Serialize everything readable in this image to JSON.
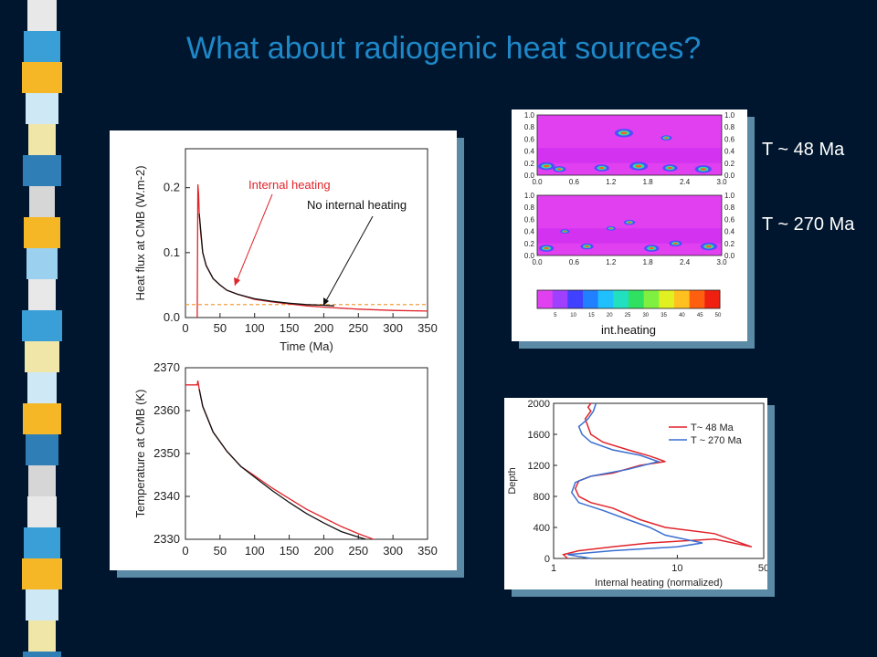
{
  "title": "What about radiogenic heat sources?",
  "side_labels": {
    "t1": "T ~ 48 Ma",
    "t2": "T ~ 270 Ma"
  },
  "colors": {
    "background": "#00162e",
    "title": "#1e88c8",
    "red": "#e0242a",
    "blue": "#3a6fd0",
    "orange": "#f0a040"
  },
  "chart_data": [
    {
      "type": "line",
      "ylabel": "Heat flux at CMB (W.m-2)",
      "xlabel": "Time (Ma)",
      "xlim": [
        0,
        350
      ],
      "ylim": [
        0,
        0.26
      ],
      "xticks": [
        "0",
        "50",
        "100",
        "150",
        "200",
        "250",
        "300",
        "350"
      ],
      "yticks": [
        "0.0",
        "0.1",
        "0.2"
      ],
      "hline": 0.02,
      "annotations": [
        "Internal heating",
        "No internal heating"
      ],
      "series": [
        {
          "color": "#e0242a",
          "x": [
            17,
            18,
            19,
            20,
            22,
            25,
            30,
            40,
            50,
            60,
            75,
            100,
            125,
            150,
            175,
            200,
            250,
            300,
            350
          ],
          "y": [
            0.0,
            0.205,
            0.19,
            0.16,
            0.13,
            0.1,
            0.08,
            0.06,
            0.05,
            0.042,
            0.036,
            0.028,
            0.024,
            0.021,
            0.018,
            0.016,
            0.013,
            0.011,
            0.01
          ]
        },
        {
          "color": "#111111",
          "x": [
            20,
            25,
            30,
            40,
            50,
            60,
            75,
            100,
            125,
            150,
            175,
            200,
            215
          ],
          "y": [
            0.16,
            0.1,
            0.08,
            0.06,
            0.05,
            0.042,
            0.036,
            0.029,
            0.025,
            0.022,
            0.02,
            0.019,
            0.018
          ]
        }
      ]
    },
    {
      "type": "line",
      "ylabel": "Temperature at CMB (K)",
      "xlabel": "",
      "xlim": [
        0,
        350
      ],
      "ylim": [
        2330,
        2370
      ],
      "xticks": [
        "0",
        "50",
        "100",
        "150",
        "200",
        "250",
        "300",
        "350"
      ],
      "yticks": [
        "2330",
        "2340",
        "2350",
        "2360",
        "2370"
      ],
      "series": [
        {
          "color": "#e0242a",
          "x": [
            0,
            15,
            17,
            18,
            20,
            25,
            40,
            60,
            80,
            100,
            125,
            150,
            175,
            200,
            225,
            250,
            275
          ],
          "y": [
            2366,
            2366,
            2366,
            2367,
            2365,
            2361,
            2355,
            2350.5,
            2347,
            2344.8,
            2342,
            2339.5,
            2337,
            2335,
            2333,
            2331.3,
            2329.8
          ]
        },
        {
          "color": "#111111",
          "x": [
            20,
            25,
            40,
            60,
            80,
            100,
            125,
            150,
            175,
            200,
            225,
            250,
            265
          ],
          "y": [
            2365,
            2361,
            2355,
            2350.5,
            2347,
            2344.5,
            2341.4,
            2338.6,
            2336,
            2333.8,
            2331.8,
            2330.5,
            2329.8
          ]
        }
      ]
    },
    {
      "type": "heatmap",
      "xlabel": "",
      "ylabel": "",
      "xticks": [
        "0.0",
        "0.6",
        "1.2",
        "1.8",
        "2.4",
        "3.0"
      ],
      "yticks": [
        "0.0",
        "0.2",
        "0.4",
        "0.6",
        "0.8",
        "1.0"
      ],
      "colorbar_label": "int.heating",
      "colorbar_ticks": [
        "5",
        "10",
        "15",
        "20",
        "25",
        "30",
        "35",
        "40",
        "45",
        "50"
      ]
    },
    {
      "type": "line",
      "xlabel": "Internal heating (normalized)",
      "ylabel": "Depth",
      "xscale": "log",
      "xlim": [
        1,
        50
      ],
      "ylim": [
        0,
        2000
      ],
      "xticks": [
        "1",
        "10",
        "50"
      ],
      "yticks": [
        "0",
        "400",
        "800",
        "1200",
        "1600",
        "2000"
      ],
      "legend": "top-right",
      "series": [
        {
          "name": "T~ 48 Ma",
          "color": "#e0242a",
          "x": [
            1.3,
            1.2,
            1.6,
            3,
            6,
            20,
            40,
            20,
            8,
            5,
            3,
            2,
            1.6,
            1.5,
            1.6,
            2,
            3,
            5,
            8,
            6,
            4,
            2.5,
            2,
            1.9,
            1.8,
            2.0,
            1.9,
            2.0
          ],
          "y": [
            0,
            50,
            100,
            150,
            200,
            250,
            150,
            320,
            400,
            500,
            650,
            720,
            800,
            900,
            1000,
            1060,
            1100,
            1200,
            1250,
            1320,
            1400,
            1500,
            1600,
            1700,
            1800,
            1900,
            1950,
            2000
          ]
        },
        {
          "name": "T ~ 270 Ma",
          "color": "#3a6fd0",
          "x": [
            2,
            1.3,
            3,
            10,
            16,
            8,
            6,
            4,
            2.5,
            1.6,
            1.4,
            1.5,
            2,
            4,
            7,
            5,
            3,
            2.0,
            1.7,
            1.6,
            1.9,
            2.1,
            2.2
          ],
          "y": [
            0,
            50,
            100,
            150,
            200,
            300,
            400,
            500,
            620,
            720,
            850,
            980,
            1060,
            1150,
            1250,
            1330,
            1400,
            1500,
            1600,
            1700,
            1800,
            1900,
            2000
          ]
        }
      ]
    }
  ]
}
